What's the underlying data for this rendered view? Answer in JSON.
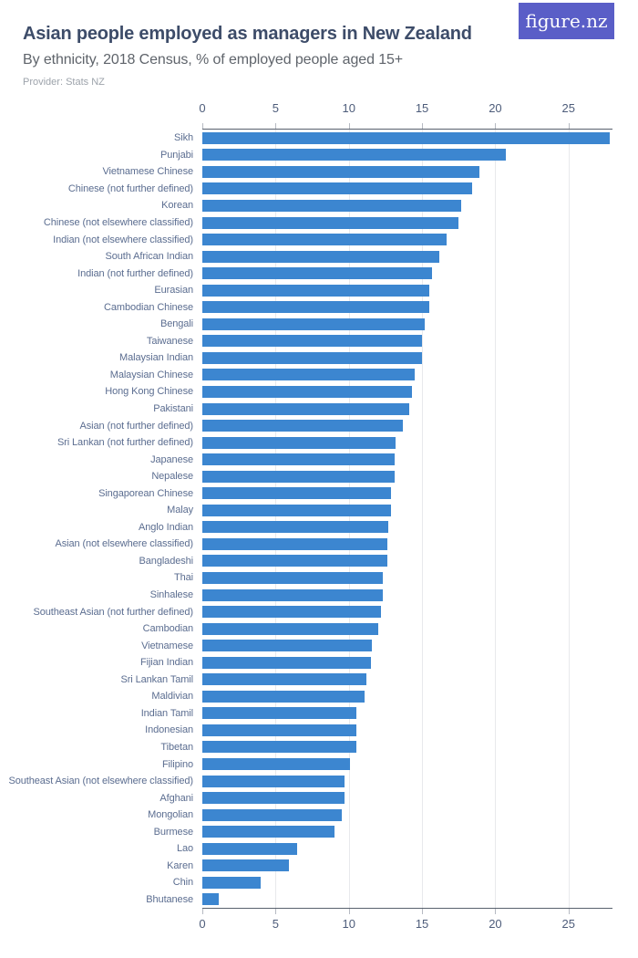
{
  "header": {
    "title": "Asian people employed as managers in New Zealand",
    "subtitle": "By ethnicity, 2018 Census, % of employed people aged 15+",
    "provider": "Provider: Stats NZ",
    "logo_text": "figure.nz"
  },
  "colors": {
    "bar": "#3c86d0",
    "logo_bg": "#5a5ec7",
    "title": "#3d4c69",
    "subtitle": "#5f646b",
    "provider": "#9da3ab",
    "axis_line": "#59616e",
    "tick_mark": "#b6bac2",
    "tick_label": "#4d5c7a",
    "category_label": "#5b6d90",
    "gridline": "#e8e9ec",
    "background": "#ffffff"
  },
  "chart_data": {
    "type": "bar",
    "orientation": "horizontal",
    "title": "Asian people employed as managers in New Zealand",
    "subtitle": "By ethnicity, 2018 Census, % of employed people aged 15+",
    "xlabel": "",
    "ylabel": "",
    "unit": "%",
    "xlim": [
      0,
      28
    ],
    "x_ticks": [
      0,
      5,
      10,
      15,
      20,
      25
    ],
    "grid": true,
    "legend": false,
    "categories": [
      "Sikh",
      "Punjabi",
      "Vietnamese Chinese",
      "Chinese (not further defined)",
      "Korean",
      "Chinese (not elsewhere classified)",
      "Indian (not elsewhere classified)",
      "South African Indian",
      "Indian (not further defined)",
      "Eurasian",
      "Cambodian Chinese",
      "Bengali",
      "Taiwanese",
      "Malaysian Indian",
      "Malaysian Chinese",
      "Hong Kong Chinese",
      "Pakistani",
      "Asian (not further defined)",
      "Sri Lankan (not further defined)",
      "Japanese",
      "Nepalese",
      "Singaporean Chinese",
      "Malay",
      "Anglo Indian",
      "Asian (not elsewhere classified)",
      "Bangladeshi",
      "Thai",
      "Sinhalese",
      "Southeast Asian (not further defined)",
      "Cambodian",
      "Vietnamese",
      "Fijian Indian",
      "Sri Lankan Tamil",
      "Maldivian",
      "Indian Tamil",
      "Indonesian",
      "Tibetan",
      "Filipino",
      "Southeast Asian (not elsewhere classified)",
      "Afghani",
      "Mongolian",
      "Burmese",
      "Lao",
      "Karen",
      "Chin",
      "Bhutanese"
    ],
    "values": [
      27.8,
      20.7,
      18.9,
      18.4,
      17.7,
      17.5,
      16.7,
      16.2,
      15.7,
      15.5,
      15.5,
      15.2,
      15.0,
      15.0,
      14.5,
      14.3,
      14.1,
      13.7,
      13.2,
      13.1,
      13.1,
      12.9,
      12.9,
      12.7,
      12.6,
      12.6,
      12.3,
      12.3,
      12.2,
      12.0,
      11.6,
      11.5,
      11.2,
      11.1,
      10.5,
      10.5,
      10.5,
      10.1,
      9.7,
      9.7,
      9.5,
      9.0,
      6.5,
      5.9,
      4.0,
      1.1
    ]
  }
}
